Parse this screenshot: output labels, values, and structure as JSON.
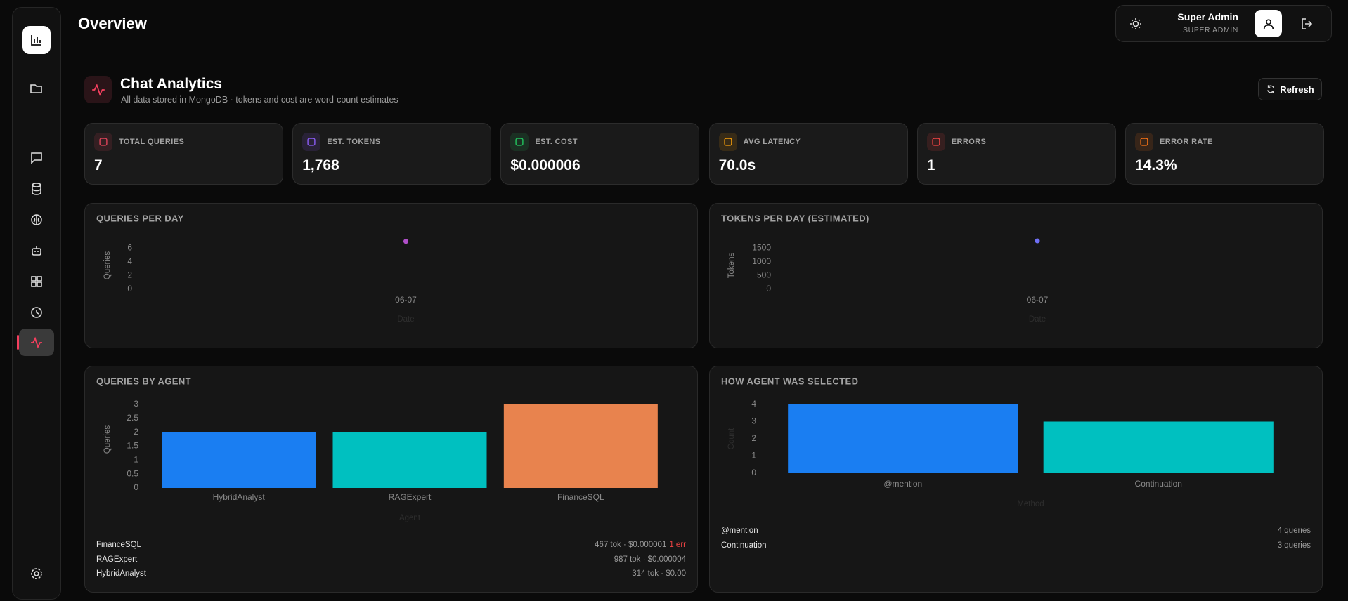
{
  "header": {
    "title": "Overview",
    "user_name": "Super Admin",
    "user_role": "SUPER ADMIN"
  },
  "page": {
    "title": "Chat Analytics",
    "subtitle": "All data stored in MongoDB · tokens and cost are word-count estimates",
    "refresh": "Refresh"
  },
  "stats": [
    {
      "label": "TOTAL QUERIES",
      "value": "7",
      "color": "#e0445a"
    },
    {
      "label": "EST. TOKENS",
      "value": "1,768",
      "color": "#8b5cf6"
    },
    {
      "label": "EST. COST",
      "value": "$0.000006",
      "color": "#22c55e"
    },
    {
      "label": "AVG LATENCY",
      "value": "70.0s",
      "color": "#f59e0b"
    },
    {
      "label": "ERRORS",
      "value": "1",
      "color": "#ef4444"
    },
    {
      "label": "ERROR RATE",
      "value": "14.3%",
      "color": "#f97316"
    }
  ],
  "charts": [
    {
      "type": "line",
      "title": "QUERIES PER DAY",
      "x_label": "Date",
      "y_label": "Queries",
      "categories": [
        "06-07"
      ],
      "values": [
        7
      ],
      "color": "#b04fc9",
      "ylim": [
        0,
        7
      ],
      "yticks": [
        0,
        2,
        4,
        6
      ]
    },
    {
      "type": "line",
      "title": "TOKENS PER DAY (ESTIMATED)",
      "x_label": "Date",
      "y_label": "Tokens",
      "categories": [
        "06-07"
      ],
      "values": [
        1768
      ],
      "color": "#6f6ff5",
      "ylim": [
        0,
        1800
      ],
      "yticks": [
        0,
        500,
        1000,
        1500
      ]
    },
    {
      "type": "bar",
      "title": "QUERIES BY AGENT",
      "x_label": "Agent",
      "y_label": "Queries",
      "categories": [
        "HybridAnalyst",
        "RAGExpert",
        "FinanceSQL"
      ],
      "values": [
        2,
        2,
        3
      ],
      "colors": [
        "#1a7ef2",
        "#00c0c0",
        "#e8834e"
      ],
      "ylim": [
        0,
        3
      ],
      "yticks": [
        0,
        0.5,
        1,
        1.5,
        2,
        2.5,
        3
      ]
    },
    {
      "type": "bar",
      "title": "HOW AGENT WAS SELECTED",
      "x_label": "Method",
      "y_label": "Count",
      "categories": [
        "@mention",
        "Continuation"
      ],
      "values": [
        4,
        3
      ],
      "colors": [
        "#1a7ef2",
        "#00c0c0"
      ],
      "ylim": [
        0,
        4
      ],
      "yticks": [
        0,
        1,
        2,
        3,
        4
      ]
    }
  ],
  "agents": [
    {
      "name": "FinanceSQL",
      "detail": "467 tok · $0.000001",
      "errors": "1 err"
    },
    {
      "name": "RAGExpert",
      "detail": "987 tok · $0.000004"
    },
    {
      "name": "HybridAnalyst",
      "detail": "314 tok · $0.00"
    }
  ],
  "selection": [
    {
      "name": "@mention",
      "count": "4 queries"
    },
    {
      "name": "Continuation",
      "count": "3 queries"
    }
  ]
}
